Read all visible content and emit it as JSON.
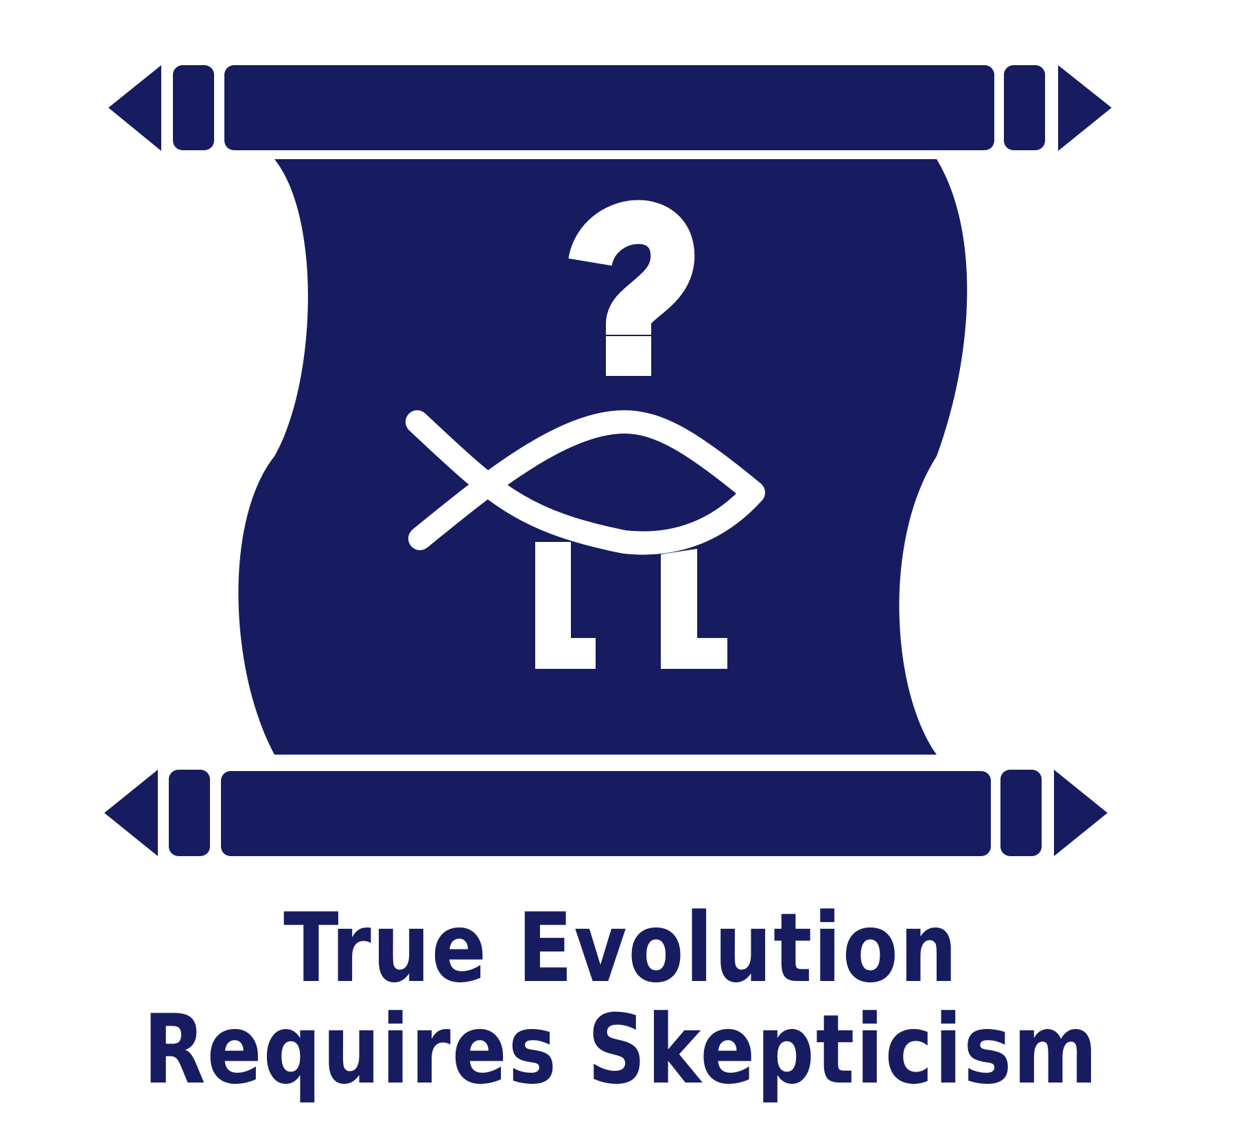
{
  "colors": {
    "navy": "#171c61",
    "white": "#ffffff"
  },
  "icons": {
    "scroll": "scroll-icon",
    "question_mark": "question-mark-icon",
    "walking_fish": "walking-fish-icon"
  },
  "tagline": {
    "line1": "True Evolution",
    "line2": "Requires Skepticism"
  }
}
